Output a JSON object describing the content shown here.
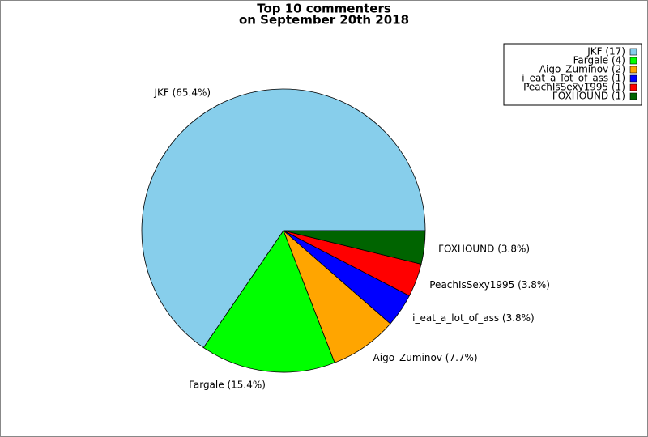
{
  "chart_data": {
    "type": "pie",
    "title": "Top 10 commenters",
    "subtitle": "on September 20th 2018",
    "categories": [
      "JKF (17)",
      "Fargale (4)",
      "Aigo_Zuminov (2)",
      "i_eat_a_lot_of_ass (1)",
      "PeachIsSexy1995 (1)",
      "FOXHOUND (1)"
    ],
    "values": [
      65.4,
      15.4,
      7.7,
      3.8,
      3.8,
      3.8
    ],
    "value_labels": [
      "JKF (65.4%)",
      "Fargale (15.4%)",
      "Aigo_Zuminov (7.7%)",
      "i_eat_a_lot_of_ass (3.8%)",
      "PeachIsSexy1995 (3.8%)",
      "FOXHOUND (3.8%)"
    ],
    "colors": [
      "#87ceeb",
      "#00ff00",
      "#ffa500",
      "#0000ff",
      "#ff0000",
      "#006400"
    ],
    "legend": "upper right"
  }
}
